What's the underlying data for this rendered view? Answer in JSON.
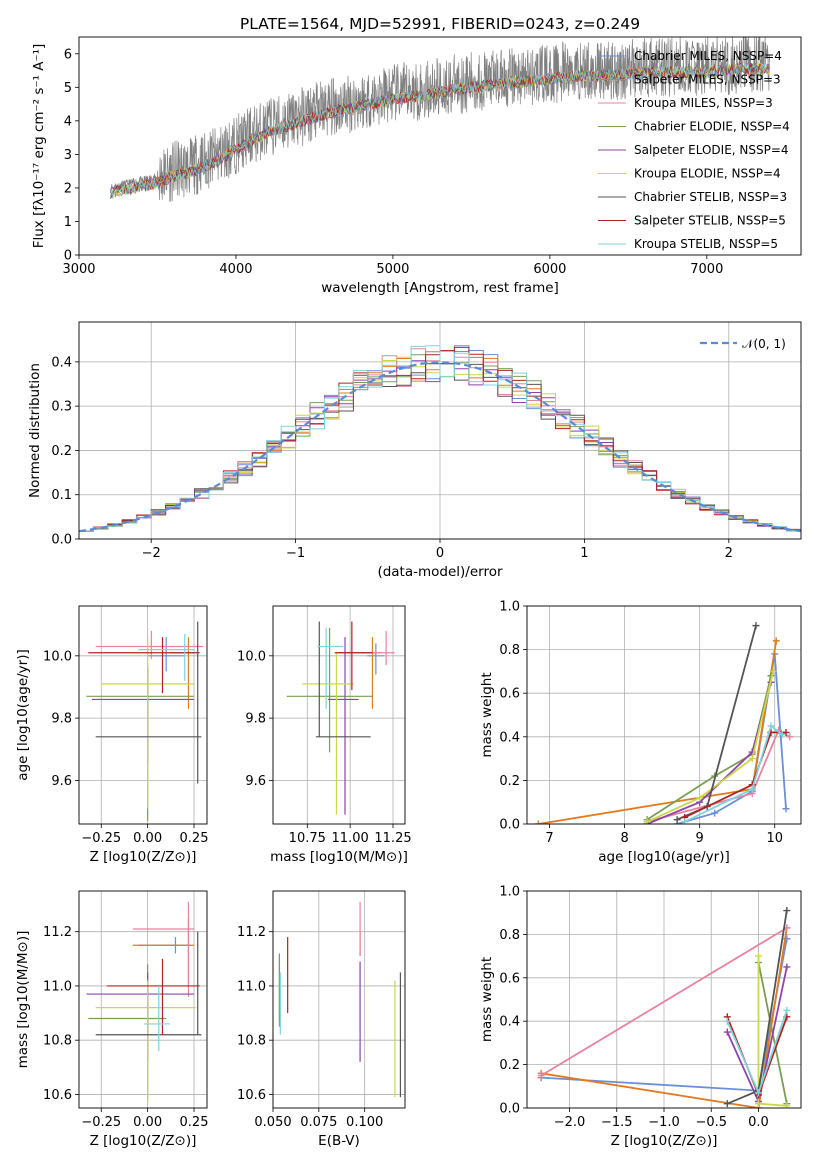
{
  "title": "PLATE=1564, MJD=52991, FIBERID=0243, z=0.249",
  "colors": [
    "#6a8fd8",
    "#e07b20",
    "#e8839f",
    "#7a9e53",
    "#8e44ad",
    "#c9d84a",
    "#555555",
    "#b22222",
    "#7fd3dc"
  ],
  "chart_data": [
    {
      "id": "spectrum",
      "type": "line",
      "xlabel": "wavelength [Angstrom, rest frame]",
      "ylabel": "Flux [fλ10⁻¹⁷ erg cm⁻² s⁻¹ A⁻¹]",
      "xlim": [
        3000,
        7600
      ],
      "ylim": [
        0,
        6.5
      ],
      "xticks": [
        "3000",
        "4000",
        "5000",
        "6000",
        "7000"
      ],
      "yticks": [
        "0",
        "1",
        "2",
        "3",
        "4",
        "5",
        "6"
      ],
      "observed_continuum": {
        "x": [
          3200,
          3300,
          3400,
          3500,
          3600,
          3700,
          3800,
          3900,
          4000,
          4200,
          4400,
          4600,
          4800,
          5000,
          5200,
          5400,
          5600,
          5800,
          6000,
          6200,
          6400,
          6600,
          6800,
          7000,
          7200,
          7400
        ],
        "y": [
          2.0,
          2.1,
          2.2,
          2.3,
          2.5,
          2.6,
          2.8,
          3.0,
          3.3,
          3.8,
          4.1,
          4.4,
          4.6,
          4.8,
          4.9,
          5.1,
          5.2,
          5.3,
          5.4,
          5.5,
          5.5,
          5.6,
          5.6,
          5.6,
          5.7,
          5.7
        ]
      },
      "legend": [
        "Chabrier MILES, NSSP=4",
        "Salpeter MILES, NSSP=3",
        "Kroupa MILES, NSSP=3",
        "Chabrier ELODIE, NSSP=4",
        "Salpeter ELODIE, NSSP=4",
        "Kroupa ELODIE, NSSP=4",
        "Chabrier STELIB, NSSP=3",
        "Salpeter STELIB, NSSP=5",
        "Kroupa STELIB, NSSP=5"
      ]
    },
    {
      "id": "residuals",
      "type": "line",
      "xlabel": "(data-model)/error",
      "ylabel": "Normed distribution",
      "xlim": [
        -2.5,
        2.5
      ],
      "ylim": [
        0,
        0.49
      ],
      "xticks": [
        "−2",
        "−1",
        "0",
        "1",
        "2"
      ],
      "yticks": [
        "0.0",
        "0.1",
        "0.2",
        "0.3",
        "0.4"
      ],
      "legend": "𝒩(0, 1)",
      "gaussian": {
        "mean": 0,
        "sigma": 1
      }
    },
    {
      "id": "age_vs_Z",
      "type": "scatter",
      "xlabel": "Z [log10(Z/Z⊙)]",
      "ylabel": "age  [log10(age/yr)]",
      "xlim": [
        -0.37,
        0.32
      ],
      "ylim": [
        9.46,
        10.16
      ],
      "xticks": [
        "−0.25",
        "0.00",
        "0.25"
      ],
      "yticks": [
        "9.6",
        "9.8",
        "10.0"
      ],
      "points": [
        {
          "x": 0.1,
          "y": 10.0,
          "ex": [
            0.1,
            0.1
          ],
          "ey": [
            0.05,
            0.06
          ]
        },
        {
          "x": 0.22,
          "y": 10.01,
          "ex": [
            0.1,
            0.03
          ],
          "ey": [
            0.18,
            0.05
          ]
        },
        {
          "x": 0.02,
          "y": 10.03,
          "ex": [
            0.3,
            0.28
          ],
          "ey": [
            0.04,
            0.05
          ]
        },
        {
          "x": 0.0,
          "y": 9.87,
          "ex": [
            0.33,
            0.25
          ],
          "ey": [
            0.4,
            0.1
          ]
        },
        {
          "x": 0.0,
          "y": 9.86,
          "ex": [
            0.3,
            0.25
          ],
          "ey": [
            0.2,
            0.1
          ]
        },
        {
          "x": 0.0,
          "y": 9.91,
          "ex": [
            0.25,
            0.25
          ],
          "ey": [
            0.4,
            0.15
          ]
        },
        {
          "x": 0.27,
          "y": 9.74,
          "ex": [
            0.55,
            0.02
          ],
          "ey": [
            0.15,
            0.37
          ]
        },
        {
          "x": 0.08,
          "y": 10.01,
          "ex": [
            0.4,
            0.2
          ],
          "ey": [
            0.13,
            0.05
          ]
        },
        {
          "x": 0.2,
          "y": 10.02,
          "ex": [
            0.25,
            0.05
          ],
          "ey": [
            0.1,
            0.05
          ]
        }
      ]
    },
    {
      "id": "age_vs_mass",
      "type": "scatter",
      "xlabel": "mass [log10(M/M⊙)]",
      "ylabel": "",
      "xlim": [
        10.55,
        11.32
      ],
      "ylim": [
        9.46,
        10.16
      ],
      "xticks": [
        "10.75",
        "11.00",
        "11.25"
      ],
      "yticks": [
        "9.6",
        "9.8",
        "10.0"
      ],
      "points": [
        {
          "x": 11.15,
          "y": 10.0,
          "ex": [
            0.05,
            0.05
          ],
          "ey": [
            0.06,
            0.04
          ]
        },
        {
          "x": 11.13,
          "y": 10.01,
          "ex": [
            0.2,
            0.05
          ],
          "ey": [
            0.18,
            0.05
          ]
        },
        {
          "x": 11.21,
          "y": 10.01,
          "ex": [
            0.12,
            0.05
          ],
          "ey": [
            0.04,
            0.07
          ]
        },
        {
          "x": 10.88,
          "y": 9.87,
          "ex": [
            0.25,
            0.25
          ],
          "ey": [
            0.18,
            0.22
          ]
        },
        {
          "x": 10.97,
          "y": 9.86,
          "ex": [
            0.1,
            0.08
          ],
          "ey": [
            0.37,
            0.2
          ]
        },
        {
          "x": 10.92,
          "y": 9.91,
          "ex": [
            0.2,
            0.1
          ],
          "ey": [
            0.42,
            0.1
          ]
        },
        {
          "x": 10.82,
          "y": 9.74,
          "ex": [
            0.02,
            0.3
          ],
          "ey": [
            0.0,
            0.37
          ]
        },
        {
          "x": 11.01,
          "y": 10.01,
          "ex": [
            0.1,
            0.12
          ],
          "ey": [
            0.12,
            0.1
          ]
        },
        {
          "x": 10.86,
          "y": 10.03,
          "ex": [
            0.05,
            0.1
          ],
          "ey": [
            0.2,
            0.06
          ]
        }
      ]
    },
    {
      "id": "weight_vs_age",
      "type": "line",
      "xlabel": "age  [log10(age/yr)]",
      "ylabel": "mass weight",
      "xlim": [
        6.7,
        10.35
      ],
      "ylim": [
        0,
        1.0
      ],
      "xticks": [
        "7",
        "8",
        "9",
        "10"
      ],
      "yticks": [
        "0.0",
        "0.2",
        "0.4",
        "0.6",
        "0.8",
        "1.0"
      ],
      "series": [
        {
          "x": [
            8.7,
            9.2,
            9.7,
            10.0,
            10.15
          ],
          "y": [
            0.0,
            0.05,
            0.15,
            0.78,
            0.07
          ]
        },
        {
          "x": [
            6.85,
            9.7,
            10.02
          ],
          "y": [
            0.0,
            0.16,
            0.84
          ]
        },
        {
          "x": [
            8.3,
            9.7,
            10.05,
            10.2
          ],
          "y": [
            0.01,
            0.14,
            0.43,
            0.4
          ]
        },
        {
          "x": [
            8.3,
            9.2,
            9.7,
            9.95
          ],
          "y": [
            0.02,
            0.22,
            0.32,
            0.68
          ]
        },
        {
          "x": [
            8.3,
            9.0,
            9.7,
            9.95
          ],
          "y": [
            0.0,
            0.1,
            0.33,
            0.65
          ]
        },
        {
          "x": [
            8.3,
            9.0,
            9.7,
            9.98
          ],
          "y": [
            0.01,
            0.12,
            0.3,
            0.7
          ]
        },
        {
          "x": [
            8.7,
            9.1,
            9.75
          ],
          "y": [
            0.02,
            0.08,
            0.91
          ]
        },
        {
          "x": [
            8.8,
            9.7,
            9.95,
            10.15
          ],
          "y": [
            0.03,
            0.18,
            0.42,
            0.42
          ]
        },
        {
          "x": [
            8.8,
            9.7,
            9.95,
            10.1
          ],
          "y": [
            0.01,
            0.16,
            0.45,
            0.41
          ]
        }
      ]
    },
    {
      "id": "mass_vs_Z",
      "type": "scatter",
      "xlabel": "Z [log10(Z/Z⊙)]",
      "ylabel": "mass [log10(M/M⊙)]",
      "xlim": [
        -0.37,
        0.32
      ],
      "ylim": [
        10.55,
        11.35
      ],
      "xticks": [
        "−0.25",
        "0.00",
        "0.25"
      ],
      "yticks": [
        "10.6",
        "10.8",
        "11.0",
        "11.2"
      ],
      "points": [
        {
          "x": 0.15,
          "y": 11.15,
          "ex": [
            0.2,
            0.08
          ],
          "ey": [
            0.03,
            0.03
          ]
        },
        {
          "x": 0.22,
          "y": 11.15,
          "ex": [
            0.3,
            0.03
          ],
          "ey": [
            0.15,
            0.1
          ]
        },
        {
          "x": 0.22,
          "y": 11.21,
          "ex": [
            0.3,
            0.03
          ],
          "ey": [
            0.25,
            0.1
          ]
        },
        {
          "x": 0.0,
          "y": 10.88,
          "ex": [
            0.32,
            0.1
          ],
          "ey": [
            0.3,
            0.2
          ]
        },
        {
          "x": 0.0,
          "y": 10.97,
          "ex": [
            0.33,
            0.25
          ],
          "ey": [
            0.25,
            0.08
          ]
        },
        {
          "x": 0.0,
          "y": 10.92,
          "ex": [
            0.28,
            0.26
          ],
          "ey": [
            0.35,
            0.1
          ]
        },
        {
          "x": 0.27,
          "y": 10.82,
          "ex": [
            0.55,
            0.02
          ],
          "ey": [
            0.0,
            0.38
          ]
        },
        {
          "x": 0.08,
          "y": 11.0,
          "ex": [
            0.3,
            0.2
          ],
          "ey": [
            0.18,
            0.1
          ]
        },
        {
          "x": 0.06,
          "y": 10.86,
          "ex": [
            0.08,
            0.06
          ],
          "ey": [
            0.1,
            0.14
          ]
        }
      ]
    },
    {
      "id": "mass_vs_ebv",
      "type": "scatter",
      "xlabel": "E(B-V)",
      "ylabel": "",
      "xlim": [
        0.05,
        0.122
      ],
      "ylim": [
        10.55,
        11.35
      ],
      "xticks": [
        "0.050",
        "0.075",
        "0.100"
      ],
      "yticks": [
        "10.6",
        "10.8",
        "11.0",
        "11.2"
      ],
      "points": [
        {
          "x": 0.0535,
          "y": 11.0,
          "ex": [
            0,
            0
          ],
          "ey": [
            0.15,
            0.12
          ]
        },
        {
          "x": 0.0975,
          "y": 11.15,
          "ex": [
            0,
            0
          ],
          "ey": [
            0.04,
            0.05
          ]
        },
        {
          "x": 0.0975,
          "y": 11.21,
          "ex": [
            0,
            0
          ],
          "ey": [
            0.1,
            0.1
          ]
        },
        {
          "x": 0.0535,
          "y": 10.97,
          "ex": [
            0,
            0
          ],
          "ey": [
            0.1,
            0.14
          ]
        },
        {
          "x": 0.0975,
          "y": 10.97,
          "ex": [
            0,
            0
          ],
          "ey": [
            0.25,
            0.12
          ]
        },
        {
          "x": 0.1165,
          "y": 10.92,
          "ex": [
            0,
            0
          ],
          "ey": [
            0.33,
            0.1
          ]
        },
        {
          "x": 0.1195,
          "y": 10.82,
          "ex": [
            0,
            0
          ],
          "ey": [
            0.23,
            0.23
          ]
        },
        {
          "x": 0.058,
          "y": 11.0,
          "ex": [
            0,
            0
          ],
          "ey": [
            0.1,
            0.18
          ]
        },
        {
          "x": 0.054,
          "y": 10.9,
          "ex": [
            0,
            0
          ],
          "ey": [
            0.08,
            0.15
          ]
        }
      ]
    },
    {
      "id": "weight_vs_Z",
      "type": "line",
      "xlabel": "Z [log10(Z/Z⊙)]",
      "ylabel": "mass weight",
      "xlim": [
        -2.45,
        0.45
      ],
      "ylim": [
        0,
        1.0
      ],
      "xticks": [
        "−2.0",
        "−1.5",
        "−1.0",
        "−0.5",
        "0.0"
      ],
      "yticks": [
        "0.0",
        "0.2",
        "0.4",
        "0.6",
        "0.8",
        "1.0"
      ],
      "series": [
        {
          "x": [
            -2.3,
            0.0,
            0.3
          ],
          "y": [
            0.14,
            0.08,
            0.78
          ]
        },
        {
          "x": [
            -2.3,
            0.0,
            0.3
          ],
          "y": [
            0.16,
            0.0,
            0.83
          ]
        },
        {
          "x": [
            -2.3,
            0.3
          ],
          "y": [
            0.15,
            0.83
          ]
        },
        {
          "x": [
            0.0,
            0.3
          ],
          "y": [
            0.67,
            0.02
          ]
        },
        {
          "x": [
            -0.33,
            0.0,
            0.3
          ],
          "y": [
            0.35,
            0.03,
            0.65
          ]
        },
        {
          "x": [
            0.0,
            0.0,
            0.3
          ],
          "y": [
            0.7,
            0.02,
            0.01
          ]
        },
        {
          "x": [
            -0.33,
            0.0,
            0.3
          ],
          "y": [
            0.02,
            0.08,
            0.91
          ]
        },
        {
          "x": [
            -0.33,
            0.0,
            0.3
          ],
          "y": [
            0.42,
            0.06,
            0.42
          ]
        },
        {
          "x": [
            -0.33,
            0.0,
            0.3
          ],
          "y": [
            0.4,
            0.07,
            0.45
          ]
        }
      ]
    }
  ]
}
